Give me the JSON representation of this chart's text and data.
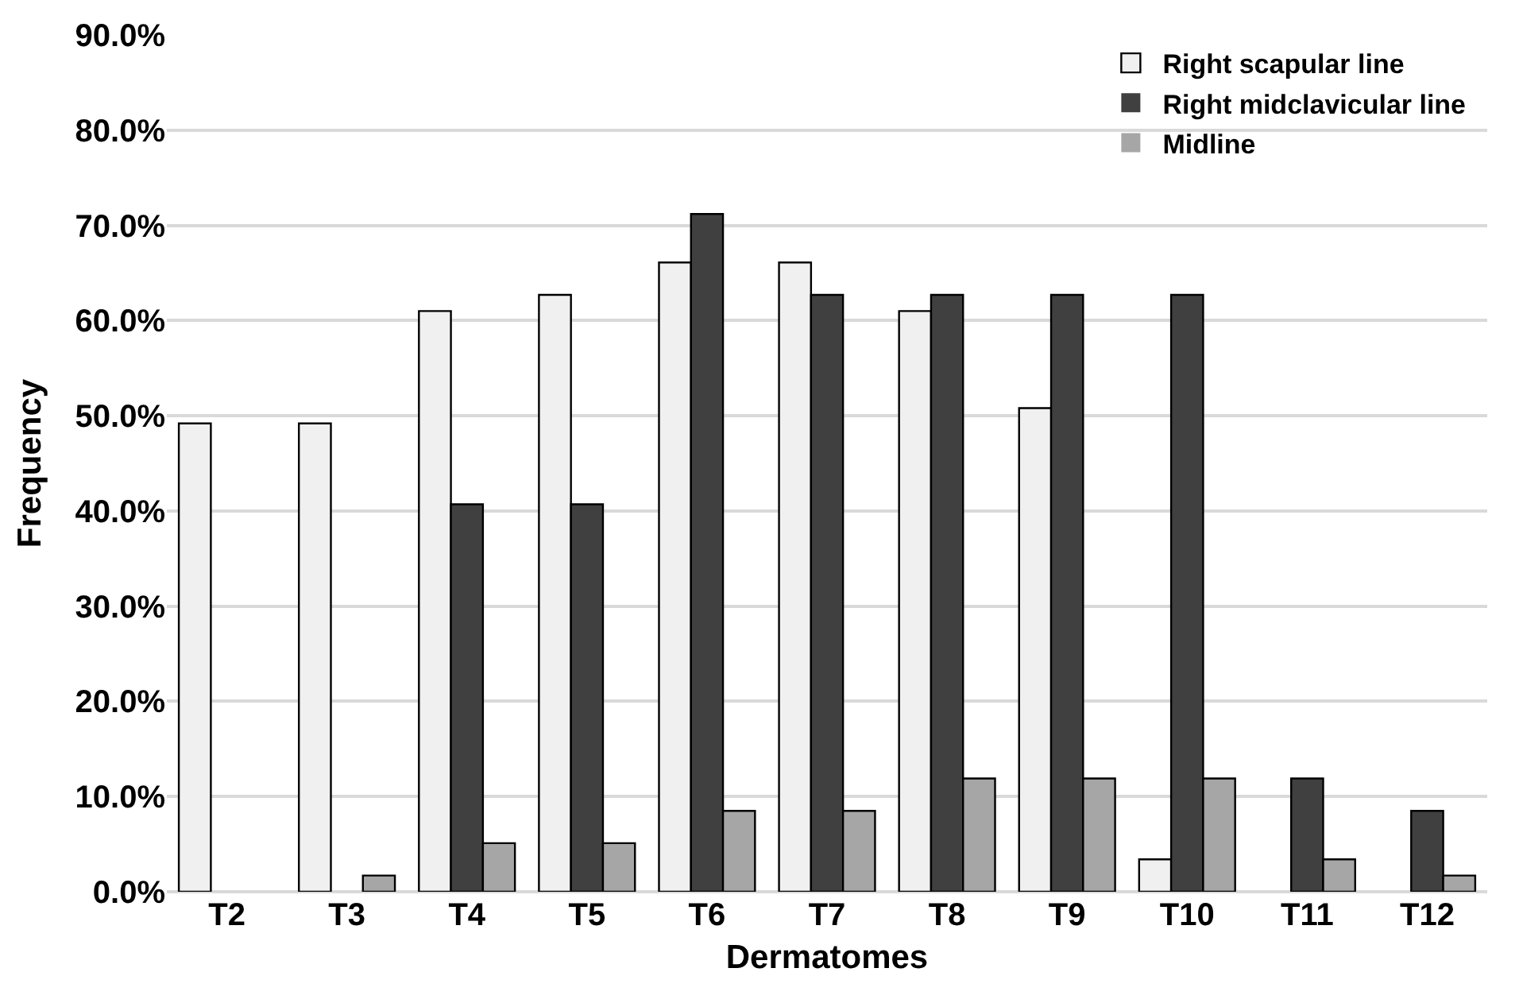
{
  "chart_data": {
    "type": "bar",
    "xlabel": "Dermatomes",
    "ylabel": "Frequency",
    "categories": [
      "T2",
      "T3",
      "T4",
      "T5",
      "T6",
      "T7",
      "T8",
      "T9",
      "T10",
      "T11",
      "T12"
    ],
    "series": [
      {
        "name": "Right scapular line",
        "color": "#f0f0f0",
        "values": [
          49.2,
          49.2,
          61.0,
          62.7,
          66.1,
          66.1,
          61.0,
          50.8,
          3.4,
          0,
          0
        ]
      },
      {
        "name": "Right midclavicular line",
        "color": "#404040",
        "values": [
          0,
          0,
          40.7,
          40.7,
          71.2,
          62.7,
          62.7,
          62.7,
          62.7,
          11.9,
          8.5
        ]
      },
      {
        "name": "Midline",
        "color": "#a6a6a6",
        "values": [
          0,
          1.7,
          5.1,
          5.1,
          8.5,
          8.5,
          11.9,
          11.9,
          11.9,
          3.4,
          1.7
        ]
      }
    ],
    "ylim": [
      0,
      90
    ],
    "yticks": [
      {
        "value": 0,
        "label": "0.0%"
      },
      {
        "value": 10,
        "label": "10.0%"
      },
      {
        "value": 20,
        "label": "20.0%"
      },
      {
        "value": 30,
        "label": "30.0%"
      },
      {
        "value": 40,
        "label": "40.0%"
      },
      {
        "value": 50,
        "label": "50.0%"
      },
      {
        "value": 60,
        "label": "60.0%"
      },
      {
        "value": 70,
        "label": "70.0%"
      },
      {
        "value": 80,
        "label": "80.0%"
      },
      {
        "value": 90,
        "label": "90.0%"
      }
    ],
    "grid": "y",
    "legend": "top right"
  }
}
